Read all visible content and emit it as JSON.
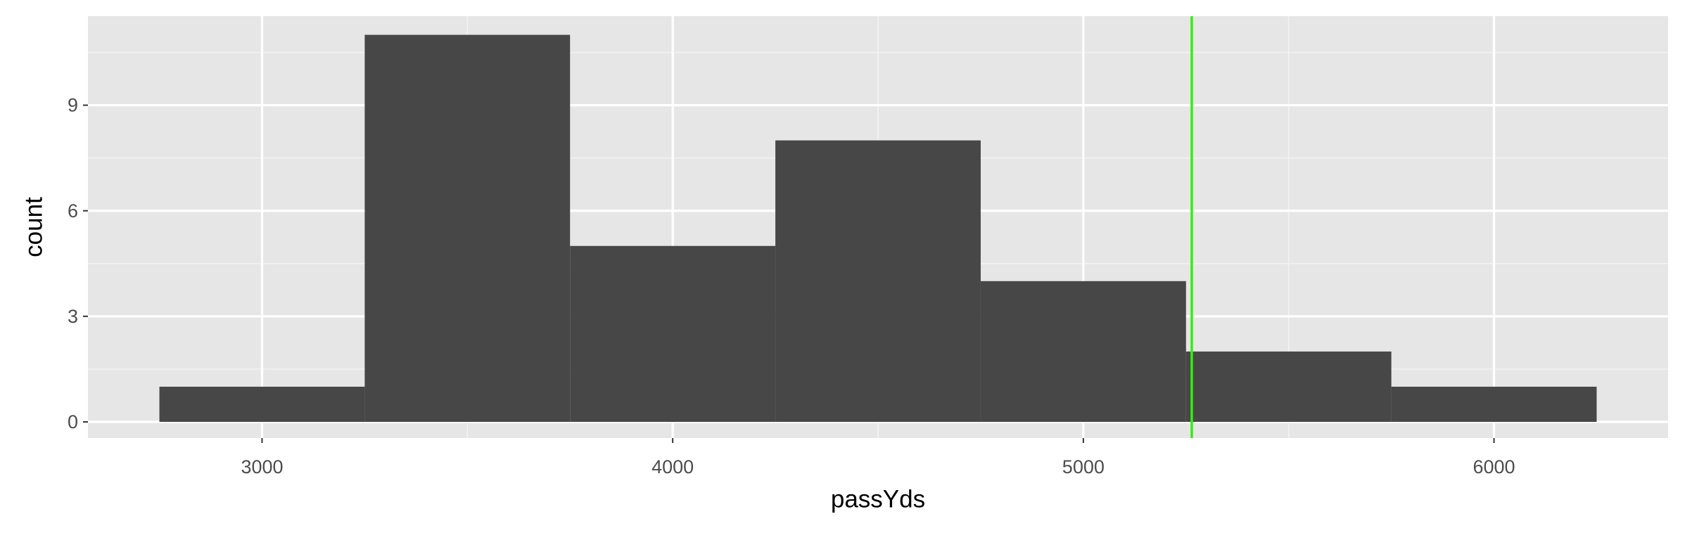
{
  "chart_data": {
    "type": "histogram",
    "x_label": "passYds",
    "y_label": "count",
    "bins": [
      2750,
      3250,
      3750,
      4250,
      4750,
      5250,
      5750,
      6250
    ],
    "values": [
      1,
      11,
      5,
      8,
      4,
      2,
      1
    ],
    "color": "#474747",
    "vline": 5264,
    "vline_color": "#33ee11",
    "xlim": [
      2576,
      6424
    ],
    "ylim": [
      -0.46,
      11.53
    ],
    "xticks": [
      3000,
      4000,
      5000,
      6000
    ],
    "yticks": [
      0,
      3,
      6,
      9
    ],
    "minor_xticks": [
      3500,
      4500,
      5500
    ],
    "minor_yticks": [
      1.5,
      4.5,
      7.5,
      10.5
    ],
    "grid": true
  }
}
